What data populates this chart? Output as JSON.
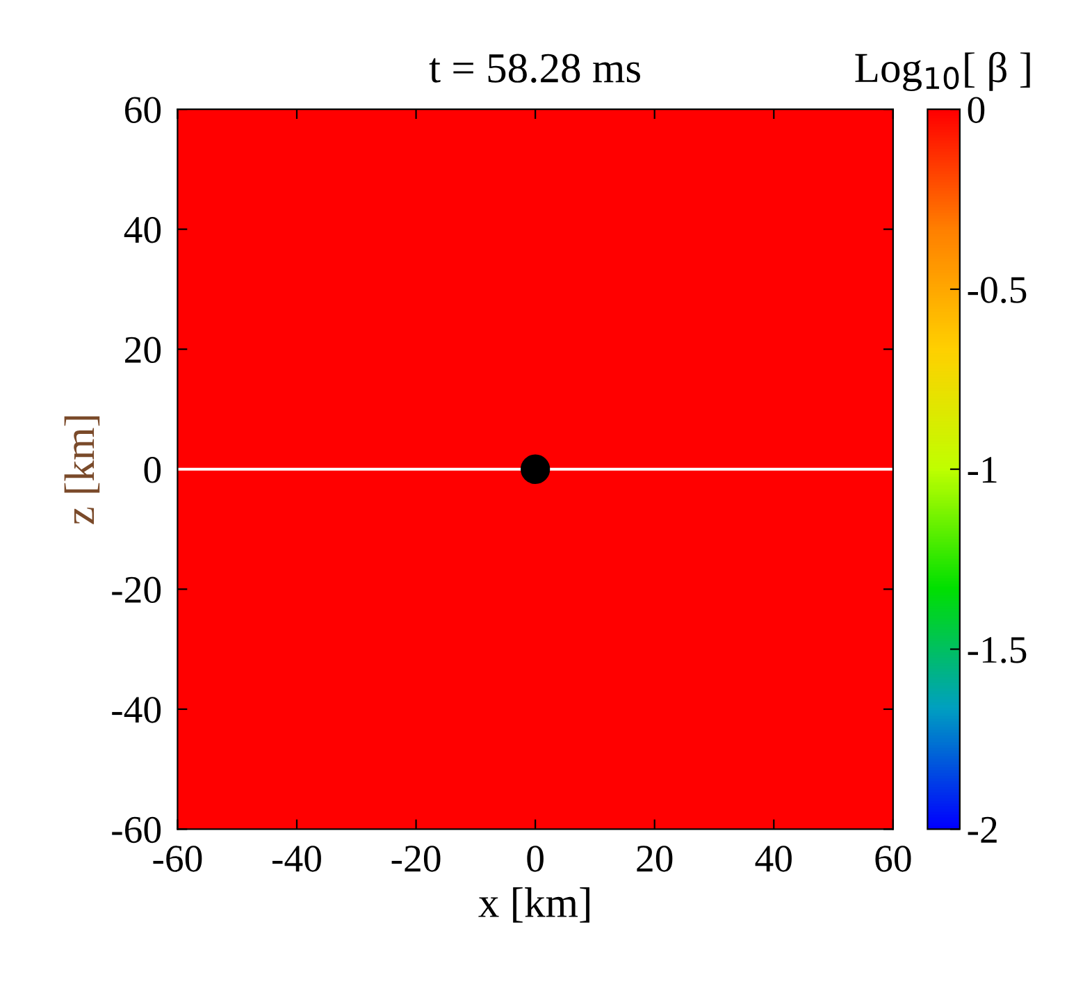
{
  "chart_data": {
    "type": "heatmap",
    "title": "t = 58.28 ms",
    "xlabel": "x [km]",
    "ylabel": "z [km]",
    "clabel": "Log$_{10}$[ β ]",
    "cells": [
      [
        0
      ]
    ],
    "xlim": [
      -60,
      60
    ],
    "ylim": [
      -60,
      60
    ],
    "xticks": [
      -60,
      -40,
      -20,
      0,
      20,
      40,
      60
    ],
    "yticks": [
      -60,
      -40,
      -20,
      0,
      20,
      40,
      60
    ],
    "clim": [
      -2,
      0
    ],
    "cticks": [
      -2,
      -1.5,
      -1,
      -0.5,
      0
    ],
    "ref_lines": [
      {
        "axis": "y",
        "value": 0,
        "color": "#ffffff"
      }
    ],
    "grid": false
  }
}
